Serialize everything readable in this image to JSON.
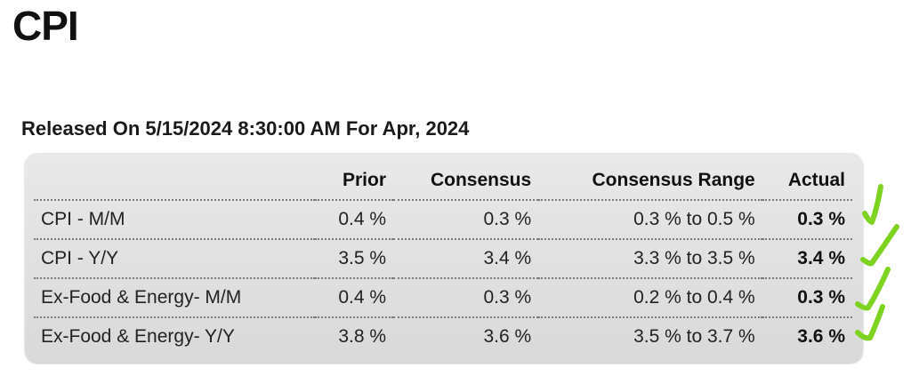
{
  "page": {
    "title": "CPI"
  },
  "release": {
    "text": "Released On 5/15/2024 8:30:00 AM For Apr, 2024"
  },
  "table": {
    "headers": [
      "",
      "Prior",
      "Consensus",
      "Consensus Range",
      "Actual"
    ],
    "rows": [
      {
        "label": "CPI - M/M",
        "prior": "0.4 %",
        "consensus": "0.3 %",
        "range": "0.3 % to 0.5 %",
        "actual": "0.3 %"
      },
      {
        "label": "CPI - Y/Y",
        "prior": "3.5 %",
        "consensus": "3.4 %",
        "range": "3.3 % to 3.5 %",
        "actual": "3.4 %"
      },
      {
        "label": "Ex-Food & Energy- M/M",
        "prior": "0.4 %",
        "consensus": "0.3 %",
        "range": "0.2 % to 0.4 %",
        "actual": "0.3 %"
      },
      {
        "label": "Ex-Food & Energy- Y/Y",
        "prior": "3.8 %",
        "consensus": "3.6 %",
        "range": "3.5 % to 3.7 %",
        "actual": "3.6 %"
      }
    ]
  },
  "annotations": {
    "check_color": "#7ed321",
    "check_icon": "checkmark-icon"
  }
}
